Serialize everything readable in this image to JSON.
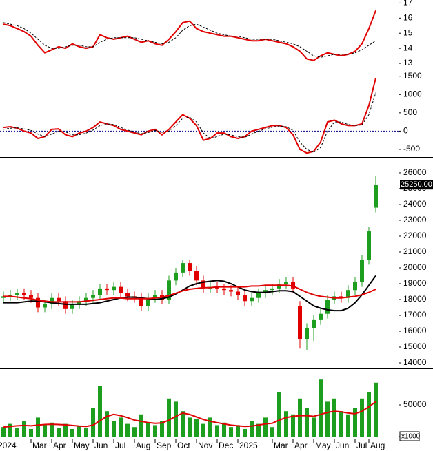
{
  "chart_data": [
    {
      "type": "line",
      "ylim": [
        12.5,
        17.2
      ],
      "yticks": [
        13,
        14,
        15,
        16,
        17
      ],
      "series": [
        {
          "color": "#e00000",
          "dash": false,
          "values": [
            15.6,
            15.5,
            15.3,
            15.1,
            14.8,
            14.2,
            13.7,
            13.9,
            14.1,
            14.0,
            14.3,
            14.1,
            14.0,
            14.1,
            14.9,
            14.7,
            14.6,
            14.7,
            14.8,
            14.6,
            14.4,
            14.5,
            14.3,
            14.2,
            14.6,
            15.1,
            15.7,
            15.8,
            15.3,
            15.1,
            15.0,
            14.9,
            14.8,
            14.8,
            14.7,
            14.6,
            14.5,
            14.5,
            14.6,
            14.5,
            14.4,
            14.3,
            14.1,
            13.8,
            13.3,
            13.2,
            13.5,
            13.7,
            13.6,
            13.5,
            13.6,
            13.8,
            14.3,
            15.3,
            16.5
          ]
        },
        {
          "color": "#000000",
          "dash": true,
          "values": [
            15.7,
            15.6,
            15.5,
            15.3,
            15.0,
            14.6,
            14.2,
            14.0,
            14.0,
            14.1,
            14.2,
            14.2,
            14.1,
            14.1,
            14.4,
            14.6,
            14.7,
            14.7,
            14.7,
            14.7,
            14.6,
            14.5,
            14.4,
            14.3,
            14.4,
            14.7,
            15.2,
            15.5,
            15.6,
            15.4,
            15.2,
            15.0,
            14.9,
            14.8,
            14.8,
            14.7,
            14.6,
            14.6,
            14.6,
            14.6,
            14.5,
            14.4,
            14.3,
            14.1,
            13.8,
            13.5,
            13.4,
            13.5,
            13.6,
            13.6,
            13.6,
            13.7,
            13.9,
            14.2,
            14.5
          ]
        }
      ]
    },
    {
      "type": "line",
      "ylim": [
        -670,
        1570
      ],
      "yticks": [
        -500,
        0,
        500,
        1000,
        1500
      ],
      "reference_line": 0,
      "reference_color": "#00008b",
      "series": [
        {
          "color": "#e00000",
          "dash": false,
          "values": [
            100,
            120,
            80,
            0,
            -50,
            -200,
            -150,
            50,
            60,
            -100,
            -150,
            -50,
            0,
            100,
            250,
            200,
            150,
            50,
            0,
            -50,
            -100,
            0,
            50,
            -100,
            50,
            250,
            450,
            350,
            150,
            -250,
            -200,
            -50,
            -50,
            -150,
            -200,
            -150,
            0,
            50,
            100,
            150,
            150,
            100,
            -100,
            -500,
            -600,
            -550,
            -300,
            250,
            300,
            200,
            150,
            150,
            200,
            700,
            1450
          ]
        },
        {
          "color": "#000000",
          "dash": true,
          "values": [
            50,
            80,
            90,
            60,
            20,
            -80,
            -150,
            -80,
            0,
            -20,
            -100,
            -100,
            -50,
            30,
            150,
            200,
            180,
            100,
            30,
            -20,
            -70,
            -40,
            20,
            -30,
            0,
            150,
            350,
            380,
            250,
            -50,
            -200,
            -150,
            -80,
            -100,
            -150,
            -170,
            -80,
            0,
            60,
            110,
            140,
            120,
            20,
            -300,
            -500,
            -580,
            -450,
            0,
            250,
            250,
            180,
            150,
            170,
            450,
            1050
          ]
        }
      ]
    },
    {
      "type": "candlestick",
      "ylim": [
        13740,
        26910
      ],
      "yticks": [
        14000,
        15000,
        16000,
        17000,
        18000,
        19000,
        20000,
        21000,
        22000,
        23000,
        24000,
        25000,
        26000
      ],
      "up_color": "#1e9e1e",
      "down_color": "#e00000",
      "open": [
        18100,
        18200,
        18300,
        18400,
        18300,
        18100,
        17500,
        17700,
        18100,
        17900,
        17400,
        17700,
        17900,
        18100,
        18300,
        18700,
        18600,
        18800,
        18400,
        18200,
        18100,
        17600,
        18100,
        18300,
        18000,
        19200,
        19700,
        20300,
        19800,
        19200,
        18700,
        18800,
        18700,
        18600,
        18500,
        18300,
        17900,
        18100,
        18400,
        18600,
        18700,
        19000,
        19100,
        17600,
        15500,
        16200,
        16700,
        17100,
        18000,
        18200,
        18100,
        18600,
        19100,
        20500,
        23800
      ],
      "high": [
        18500,
        18600,
        18700,
        18700,
        18600,
        18400,
        18000,
        18400,
        18400,
        18200,
        18000,
        18200,
        18400,
        18600,
        19000,
        19000,
        19100,
        19100,
        18700,
        18500,
        18400,
        18400,
        18600,
        18600,
        19500,
        20000,
        20500,
        20500,
        20100,
        19500,
        19100,
        19100,
        19000,
        18900,
        18800,
        18600,
        18400,
        18700,
        18900,
        19000,
        19300,
        19400,
        19400,
        17900,
        16500,
        17000,
        17400,
        18300,
        18500,
        18500,
        18900,
        19400,
        20800,
        22600,
        25800
      ],
      "low": [
        17800,
        17900,
        18000,
        18000,
        17800,
        17200,
        17200,
        17400,
        17600,
        17100,
        17100,
        17400,
        17600,
        17800,
        18000,
        18300,
        18300,
        18100,
        17900,
        17800,
        17300,
        17300,
        17800,
        17700,
        17700,
        18900,
        19400,
        19500,
        18900,
        18400,
        18400,
        18400,
        18300,
        18200,
        18000,
        17600,
        17600,
        17800,
        18100,
        18300,
        18400,
        18700,
        18400,
        14900,
        14800,
        15400,
        16400,
        16800,
        17700,
        17800,
        17800,
        18300,
        18800,
        20200,
        23500
      ],
      "close": [
        18200,
        18300,
        18400,
        18300,
        18100,
        17500,
        17700,
        18100,
        17900,
        17400,
        17700,
        17900,
        18100,
        18300,
        18700,
        18600,
        18800,
        18400,
        18200,
        18100,
        17600,
        18100,
        18300,
        18000,
        19200,
        19700,
        20300,
        19800,
        19200,
        18700,
        18800,
        18700,
        18600,
        18500,
        18300,
        17900,
        18100,
        18400,
        18600,
        18700,
        19000,
        19100,
        18700,
        15500,
        16200,
        16700,
        17100,
        18000,
        18200,
        18100,
        18600,
        19100,
        20500,
        22300,
        25250
      ],
      "price_marker": {
        "value": 25250,
        "label": "25250.00"
      },
      "series": [
        {
          "color": "#000000",
          "dash": false,
          "values": [
            17800,
            17800,
            17800,
            17850,
            17900,
            17900,
            17850,
            17800,
            17750,
            17700,
            17700,
            17700,
            17700,
            17750,
            17800,
            17900,
            18000,
            18100,
            18150,
            18150,
            18100,
            18050,
            18000,
            18050,
            18150,
            18350,
            18600,
            18850,
            19000,
            19100,
            19150,
            19200,
            19150,
            19000,
            18800,
            18600,
            18500,
            18450,
            18450,
            18500,
            18550,
            18550,
            18500,
            18200,
            17900,
            17600,
            17450,
            17350,
            17300,
            17300,
            17450,
            17800,
            18300,
            18900,
            19500
          ]
        },
        {
          "color": "#e00000",
          "dash": false,
          "values": [
            18200,
            18200,
            18150,
            18100,
            18050,
            17950,
            17900,
            17850,
            17850,
            17850,
            17850,
            17850,
            17900,
            17950,
            18000,
            18050,
            18100,
            18100,
            18050,
            18050,
            18050,
            18050,
            18100,
            18150,
            18250,
            18400,
            18550,
            18650,
            18700,
            18750,
            18750,
            18800,
            18800,
            18800,
            18800,
            18800,
            18850,
            18850,
            18900,
            18900,
            18900,
            18900,
            18850,
            18650,
            18450,
            18300,
            18200,
            18150,
            18100,
            18100,
            18150,
            18200,
            18300,
            18450,
            18650
          ]
        }
      ]
    },
    {
      "type": "bar",
      "ylim": [
        -3260,
        105400
      ],
      "yticks": [
        0,
        50000
      ],
      "color": "#1e9e1e",
      "unit_label": "x1000",
      "values": [
        15000,
        20000,
        14000,
        25000,
        12000,
        30000,
        18000,
        22000,
        14000,
        20000,
        12000,
        16000,
        13000,
        45000,
        80000,
        40000,
        25000,
        30000,
        20000,
        15000,
        35000,
        22000,
        18000,
        25000,
        60000,
        55000,
        40000,
        30000,
        28000,
        20000,
        30000,
        18000,
        22000,
        15000,
        18000,
        12000,
        25000,
        20000,
        30000,
        15000,
        70000,
        40000,
        35000,
        60000,
        45000,
        30000,
        90000,
        55000,
        60000,
        40000,
        35000,
        45000,
        60000,
        70000,
        85000
      ],
      "overlay": {
        "color": "#e00000",
        "values": [
          15000,
          16000,
          17000,
          17500,
          17000,
          18000,
          19000,
          19500,
          19000,
          18500,
          17500,
          16500,
          16000,
          18000,
          25000,
          32000,
          35000,
          33000,
          30000,
          26000,
          24000,
          22000,
          21000,
          21500,
          26000,
          32000,
          37000,
          35000,
          31000,
          27000,
          24000,
          22000,
          20000,
          18000,
          17000,
          16000,
          16500,
          18000,
          20000,
          21000,
          26000,
          30000,
          32000,
          33000,
          33000,
          32000,
          35000,
          38000,
          40000,
          39000,
          37000,
          36000,
          40000,
          47000,
          55000
        ]
      },
      "categories": [
        "2024",
        null,
        null,
        null,
        null,
        "Mar",
        null,
        null,
        "Apr",
        null,
        null,
        "May",
        null,
        null,
        "Jun",
        null,
        null,
        "Jul",
        null,
        null,
        "Aug",
        null,
        null,
        "Sep",
        null,
        null,
        "Oct",
        null,
        null,
        "Nov",
        null,
        null,
        "Dec",
        null,
        null,
        "2025",
        null,
        null,
        null,
        null,
        "Mar",
        null,
        null,
        "Apr",
        null,
        null,
        "May",
        null,
        null,
        "Jun",
        null,
        null,
        "Jul",
        null,
        "Aug"
      ]
    }
  ]
}
